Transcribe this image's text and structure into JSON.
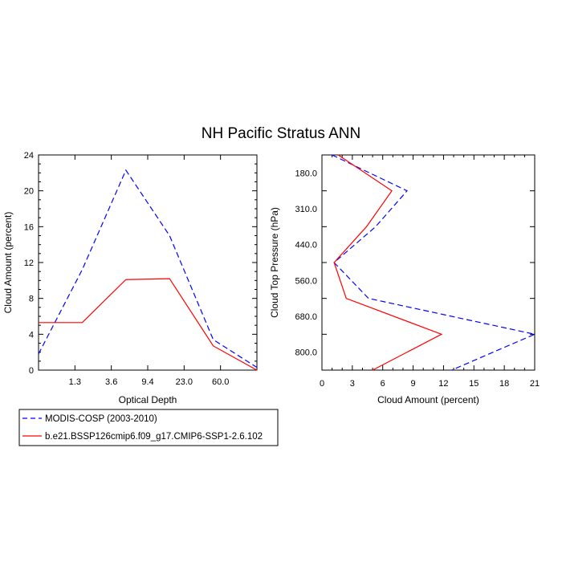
{
  "title": "NH Pacific Stratus ANN",
  "legend": [
    {
      "label": "MODIS-COSP (2003-2010)",
      "color": "#0000ff",
      "dash": "dashed"
    },
    {
      "label": "b.e21.BSSP126cmip6.f09_g17.CMIP6-SSP1-2.6.102",
      "color": "#ff0000",
      "dash": "solid"
    }
  ],
  "chart_data": [
    {
      "type": "line",
      "xlabel": "Optical Depth",
      "ylabel": "Cloud Amount (percent)",
      "x_tick_labels": [
        "1.3",
        "3.6",
        "9.4",
        "23.0",
        "60.0"
      ],
      "x_bins": [
        0,
        1,
        2,
        3,
        4,
        5,
        6
      ],
      "xlim": [
        0,
        6
      ],
      "ylim": [
        0,
        24
      ],
      "y_ticks": [
        0,
        4,
        8,
        12,
        16,
        20,
        24
      ],
      "y_minor_step": 1,
      "series": [
        {
          "name": "MODIS-COSP (2003-2010)",
          "color": "#0000ff",
          "dash": "dashed",
          "values": [
            1.8,
            11.2,
            22.3,
            15.0,
            3.4,
            0.3
          ]
        },
        {
          "name": "b.e21.BSSP126cmip6.f09_g17.CMIP6-SSP1-2.6.102",
          "color": "#ff0000",
          "dash": "solid",
          "values": [
            5.3,
            5.3,
            10.1,
            10.2,
            2.7,
            0.0
          ]
        }
      ],
      "x_positions": [
        0,
        1,
        2,
        3,
        4,
        5
      ]
    },
    {
      "type": "line",
      "orientation": "horizontal",
      "xlabel": "Cloud Amount (percent)",
      "ylabel": "Cloud Top Pressure (hPa)",
      "x_ticks": [
        0,
        3,
        6,
        9,
        12,
        15,
        18,
        21
      ],
      "x_minor_step": 1,
      "xlim": [
        0,
        21
      ],
      "y_tick_labels": [
        "180.0",
        "310.0",
        "440.0",
        "560.0",
        "680.0",
        "800.0"
      ],
      "y_levels": [
        0,
        1,
        2,
        3,
        4,
        5,
        6
      ],
      "ylim": [
        0,
        6
      ],
      "series": [
        {
          "name": "MODIS-COSP (2003-2010)",
          "color": "#0000ff",
          "dash": "dashed",
          "values": [
            1.0,
            8.4,
            5.3,
            1.2,
            4.6,
            21.0,
            12.8
          ]
        },
        {
          "name": "b.e21.BSSP126cmip6.f09_g17.CMIP6-SSP1-2.6.102",
          "color": "#ff0000",
          "dash": "solid",
          "values": [
            1.6,
            6.9,
            4.4,
            1.2,
            2.4,
            11.8,
            5.0
          ]
        }
      ],
      "y_positions": [
        0,
        1,
        2,
        3,
        4,
        5,
        6
      ]
    }
  ]
}
